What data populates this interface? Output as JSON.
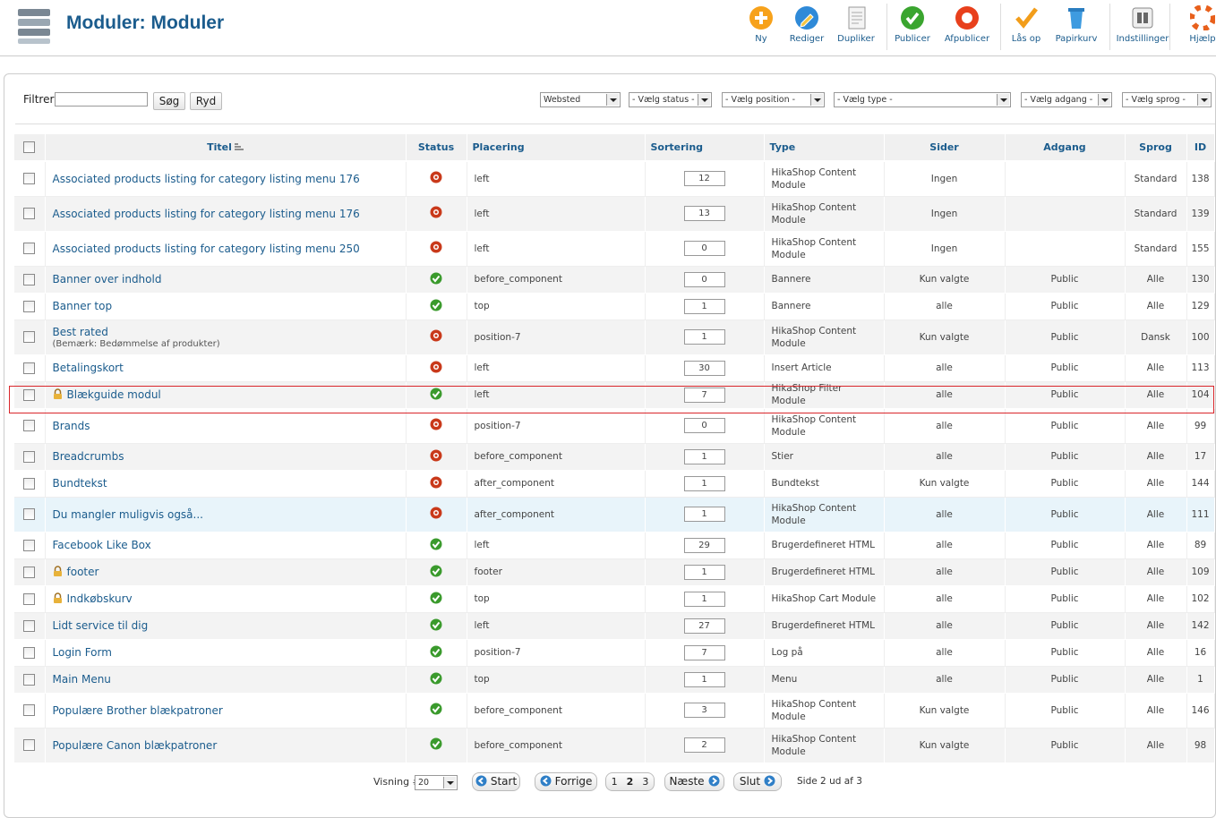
{
  "header": {
    "title": "Moduler: Moduler"
  },
  "toolbar": [
    "Ny",
    "Rediger",
    "Dupliker",
    "Publicer",
    "Afpublicer",
    "Lås op",
    "Papirkurv",
    "Indstillinger",
    "Hjælp"
  ],
  "filter": {
    "label": "Filtrer:",
    "search": "Søg",
    "reset": "Ryd",
    "selects": [
      "Websted",
      "- Vælg status -",
      "- Vælg position -",
      "- Vælg type -",
      "- Vælg adgang -",
      "- Vælg sprog -"
    ]
  },
  "table": {
    "columns": [
      "Titel",
      "Status",
      "Placering",
      "Sortering",
      "Type",
      "Sider",
      "Adgang",
      "Sprog",
      "ID"
    ],
    "rows": [
      {
        "title": "Associated products listing for category listing menu 176",
        "published": false,
        "position": "left",
        "order": 12,
        "type": "HikaShop Content Module",
        "pages": "Ingen",
        "language": "Standard",
        "id": 138
      },
      {
        "title": "Associated products listing for category listing menu 176",
        "published": false,
        "position": "left",
        "order": 13,
        "type": "HikaShop Content Module",
        "pages": "Ingen",
        "language": "Standard",
        "id": 139
      },
      {
        "title": "Associated products listing for category listing menu 250",
        "published": false,
        "position": "left",
        "order": 0,
        "type": "HikaShop Content Module",
        "pages": "Ingen",
        "language": "Standard",
        "id": 155
      },
      {
        "title": "Banner over indhold",
        "published": true,
        "position": "before_component",
        "order": 0,
        "type": "Bannere",
        "pages": "Kun valgte",
        "access": "Public",
        "language": "Alle",
        "id": 130
      },
      {
        "title": "Banner top",
        "published": true,
        "position": "top",
        "order": 1,
        "type": "Bannere",
        "pages": "alle",
        "access": "Public",
        "language": "Alle",
        "id": 129
      },
      {
        "title": "Best rated",
        "note": "(Bemærk: Bedømmelse af produkter)",
        "published": false,
        "position": "position-7",
        "order": 1,
        "type": "HikaShop Content Module",
        "pages": "Kun valgte",
        "access": "Public",
        "language": "Dansk",
        "id": 100
      },
      {
        "title": "Betalingskort",
        "published": false,
        "position": "left",
        "order": 30,
        "type": "Insert Article",
        "pages": "alle",
        "access": "Public",
        "language": "Alle",
        "id": 113
      },
      {
        "title": "Blækguide modul",
        "locked": true,
        "highlighted": true,
        "published": true,
        "position": "left",
        "order": 7,
        "type": "HikaShop Filter Module",
        "pages": "alle",
        "access": "Public",
        "language": "Alle",
        "id": 104
      },
      {
        "title": "Brands",
        "published": false,
        "position": "position-7",
        "order": 0,
        "type": "HikaShop Content Module",
        "pages": "alle",
        "access": "Public",
        "language": "Alle",
        "id": 99
      },
      {
        "title": "Breadcrumbs",
        "published": false,
        "position": "before_component",
        "order": 1,
        "type": "Stier",
        "pages": "alle",
        "access": "Public",
        "language": "Alle",
        "id": 17
      },
      {
        "title": "Bundtekst",
        "published": false,
        "position": "after_component",
        "order": 1,
        "type": "Bundtekst",
        "pages": "Kun valgte",
        "access": "Public",
        "language": "Alle",
        "id": 144
      },
      {
        "title": "Du mangler muligvis også...",
        "hovered": true,
        "published": false,
        "position": "after_component",
        "order": 1,
        "type": "HikaShop Content Module",
        "pages": "alle",
        "access": "Public",
        "language": "Alle",
        "id": 111
      },
      {
        "title": "Facebook Like Box",
        "published": true,
        "position": "left",
        "order": 29,
        "type": "Brugerdefineret HTML",
        "pages": "alle",
        "access": "Public",
        "language": "Alle",
        "id": 89
      },
      {
        "title": "footer",
        "locked": true,
        "published": true,
        "position": "footer",
        "order": 1,
        "type": "Brugerdefineret HTML",
        "pages": "alle",
        "access": "Public",
        "language": "Alle",
        "id": 109
      },
      {
        "title": "Indkøbskurv",
        "locked": true,
        "published": true,
        "position": "top",
        "order": 1,
        "type": "HikaShop Cart Module",
        "pages": "alle",
        "access": "Public",
        "language": "Alle",
        "id": 102
      },
      {
        "title": "Lidt service til dig",
        "published": true,
        "position": "left",
        "order": 27,
        "type": "Brugerdefineret HTML",
        "pages": "alle",
        "access": "Public",
        "language": "Alle",
        "id": 142
      },
      {
        "title": "Login Form",
        "published": true,
        "position": "position-7",
        "order": 7,
        "type": "Log på",
        "pages": "alle",
        "access": "Public",
        "language": "Alle",
        "id": 16
      },
      {
        "title": "Main Menu",
        "published": true,
        "position": "top",
        "order": 1,
        "type": "Menu",
        "pages": "alle",
        "access": "Public",
        "language": "Alle",
        "id": 1
      },
      {
        "title": "Populære Brother blækpatroner",
        "published": true,
        "position": "before_component",
        "order": 3,
        "type": "HikaShop Content Module",
        "pages": "Kun valgte",
        "access": "Public",
        "language": "Alle",
        "id": 146
      },
      {
        "title": "Populære Canon blækpatroner",
        "published": true,
        "position": "before_component",
        "order": 2,
        "type": "HikaShop Content Module",
        "pages": "Kun valgte",
        "access": "Public",
        "language": "Alle",
        "id": 98
      }
    ]
  },
  "pagination": {
    "display_label": "Visning #",
    "limit": 20,
    "start": "Start",
    "prev": "Forrige",
    "pages": [
      1,
      2,
      3
    ],
    "current": 2,
    "next": "Næste",
    "end": "Slut",
    "summary": "Side 2 ud af 3"
  }
}
